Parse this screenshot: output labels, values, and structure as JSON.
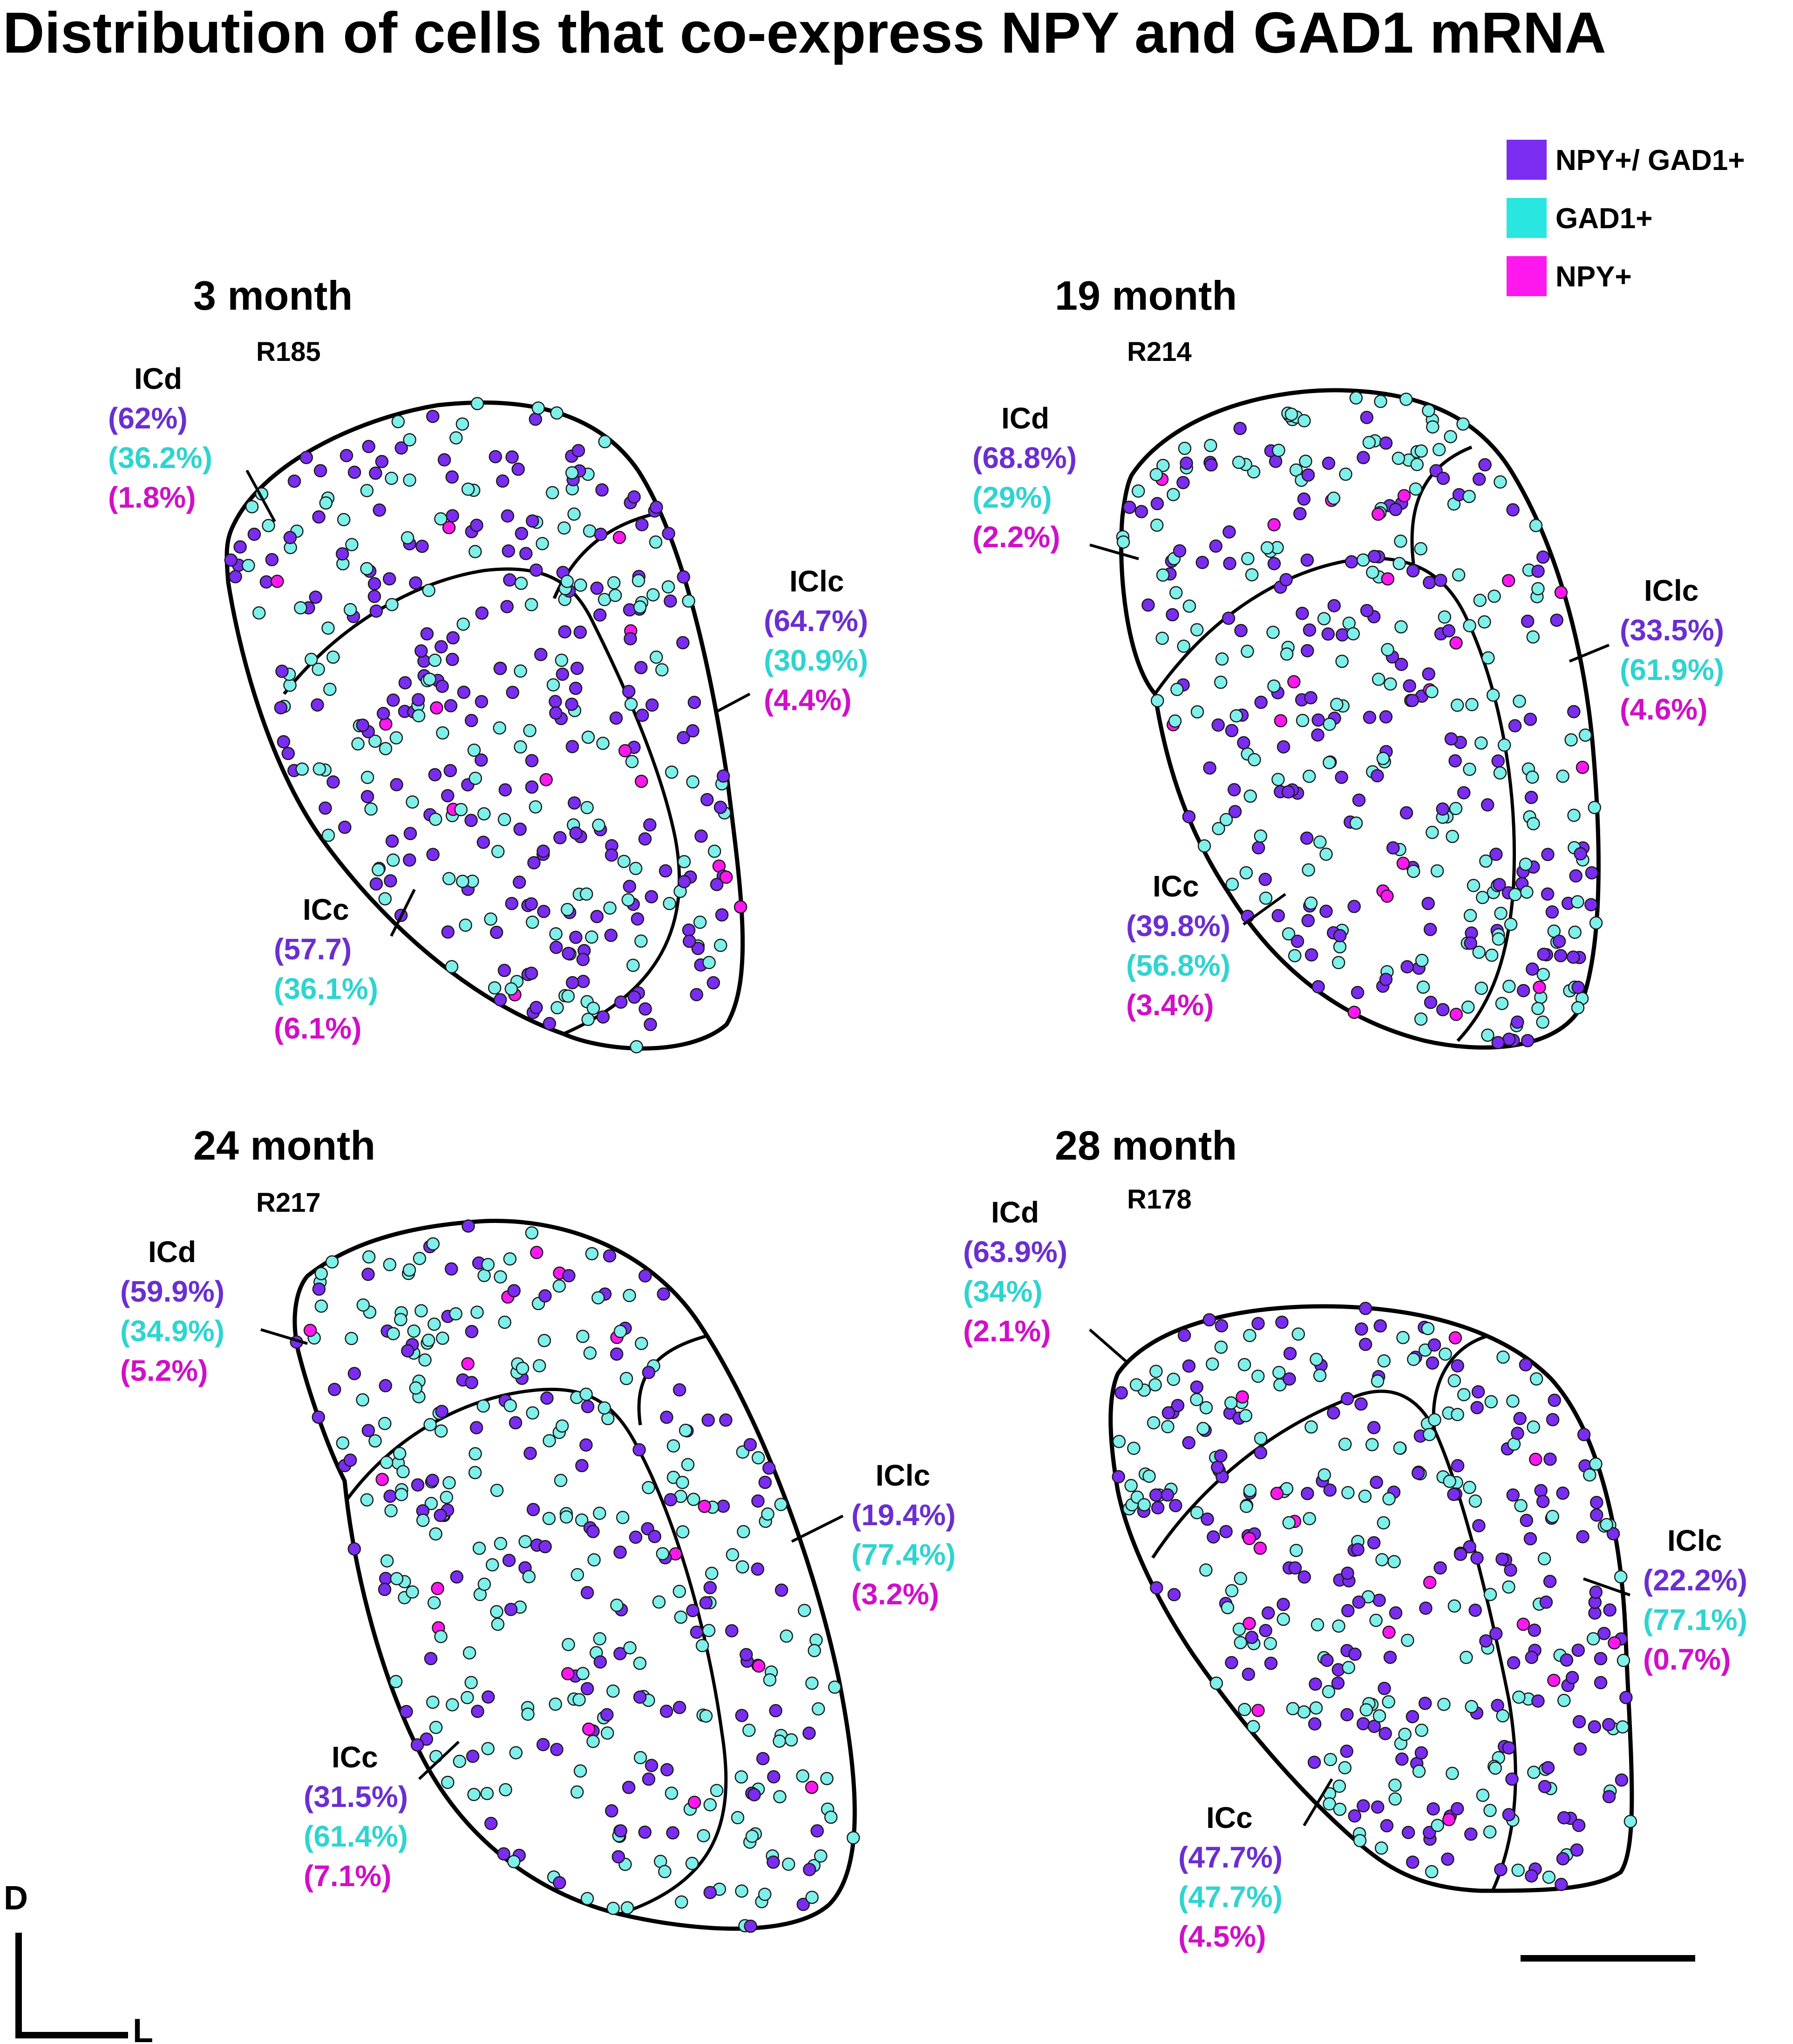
{
  "title": "Distribution of cells that co-express NPY and GAD1 mRNA",
  "legend": [
    {
      "label": "NPY+/ GAD1+",
      "color": "#7a2cf0"
    },
    {
      "label": "GAD1+",
      "color": "#29e6e0"
    },
    {
      "label": "NPY+",
      "color": "#ff18ee"
    }
  ],
  "colors": {
    "npy_gad1": "#7a2cf0",
    "gad1": "#7ef0ea",
    "npy": "#ff18ee",
    "pct_purple": "#6b2fd0",
    "pct_cyan": "#2fd4d0",
    "pct_magenta": "#d010c8"
  },
  "panels": [
    {
      "age": "3 month",
      "id": "R185",
      "regions": [
        {
          "name": "ICd",
          "pcts": [
            "(62%)",
            "(36.2%)",
            "(1.8%)"
          ]
        },
        {
          "name": "IClc",
          "pcts": [
            "(64.7%)",
            "(30.9%)",
            "(4.4%)"
          ]
        },
        {
          "name": "ICc",
          "pcts": [
            "(57.7)",
            "(36.1%)",
            "(6.1%)"
          ]
        }
      ]
    },
    {
      "age": "19 month",
      "id": "R214",
      "regions": [
        {
          "name": "ICd",
          "pcts": [
            "(68.8%)",
            "(29%)",
            "(2.2%)"
          ]
        },
        {
          "name": "IClc",
          "pcts": [
            "(33.5%)",
            "(61.9%)",
            "(4.6%)"
          ]
        },
        {
          "name": "ICc",
          "pcts": [
            "(39.8%)",
            "(56.8%)",
            "(3.4%)"
          ]
        }
      ]
    },
    {
      "age": "24 month",
      "id": "R217",
      "regions": [
        {
          "name": "ICd",
          "pcts": [
            "(59.9%)",
            "(34.9%)",
            "(5.2%)"
          ]
        },
        {
          "name": "IClc",
          "pcts": [
            "(19.4%)",
            "(77.4%)",
            "(3.2%)"
          ]
        },
        {
          "name": "ICc",
          "pcts": [
            "(31.5%)",
            "(61.4%)",
            "(7.1%)"
          ]
        }
      ]
    },
    {
      "age": "28 month",
      "id": "R178",
      "regions": [
        {
          "name": "ICd",
          "pcts": [
            "(63.9%)",
            "(34%)",
            "(2.1%)"
          ]
        },
        {
          "name": "IClc",
          "pcts": [
            "(22.2%)",
            "(77.1%)",
            "(0.7%)"
          ]
        },
        {
          "name": "ICc",
          "pcts": [
            "(47.7%)",
            "(47.7%)",
            "(4.5%)"
          ]
        }
      ]
    }
  ],
  "orientation": {
    "dorsal": "D",
    "lateral": "L"
  }
}
